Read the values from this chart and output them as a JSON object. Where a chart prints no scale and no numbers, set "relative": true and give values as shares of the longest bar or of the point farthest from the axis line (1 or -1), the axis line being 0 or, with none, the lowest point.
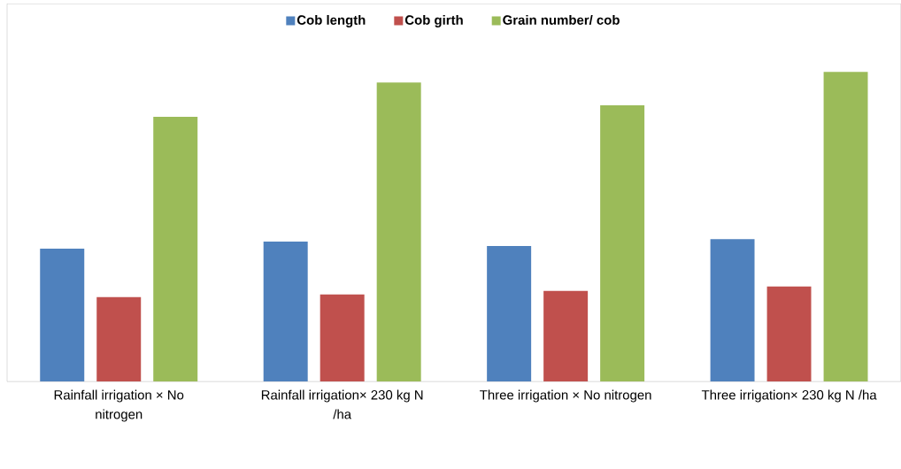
{
  "chart_data": {
    "type": "bar",
    "relative": true,
    "legend": "top",
    "categories": [
      "Rainfall irrigation × No nitrogen",
      "Rainfall irrigation× 230 kg N /ha",
      "Three irrigation × No nitrogen",
      "Three irrigation× 230 kg N /ha"
    ],
    "series": [
      {
        "name": "Cob length",
        "color": "#4f81bd",
        "values": [
          0.429,
          0.452,
          0.438,
          0.46
        ]
      },
      {
        "name": "Cob girth",
        "color": "#c0504d",
        "values": [
          0.273,
          0.281,
          0.293,
          0.307
        ]
      },
      {
        "name": "Grain number/ cob",
        "color": "#9bbb59",
        "values": [
          0.855,
          0.966,
          0.892,
          1
        ]
      }
    ]
  }
}
